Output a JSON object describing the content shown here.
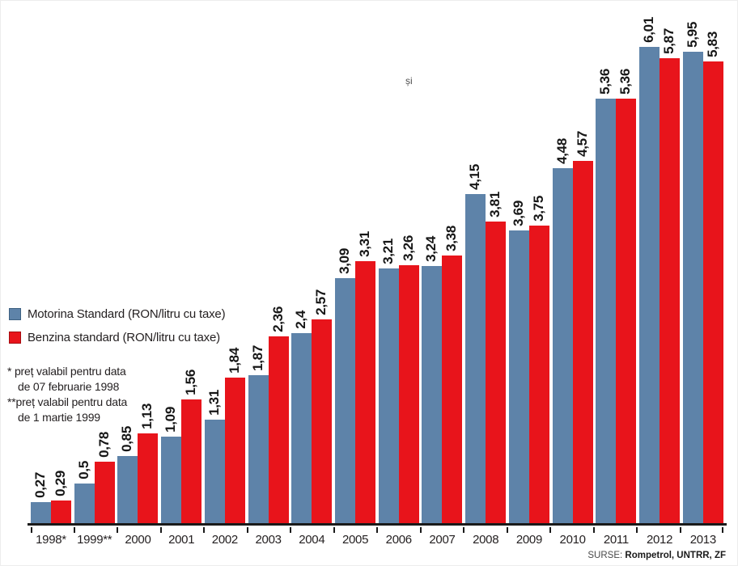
{
  "title_fragment": "și",
  "legend": {
    "motorina_label": "Motorina Standard (RON/litru cu taxe)",
    "benzina_label": "Benzina standard (RON/litru cu taxe)"
  },
  "footnotes": {
    "line1": "* preț valabil pentru data",
    "line2": "de 07 februarie 1998",
    "line3": "**preț valabil pentru data",
    "line4": "de 1 martie 1999"
  },
  "source": {
    "prefix": "SURSE:",
    "names": "Rompetrol, UNTRR, ZF"
  },
  "colors": {
    "motorina": "#5e83a9",
    "benzina": "#e8141b",
    "axis": "#1a1a1a",
    "label_text": "#161616"
  },
  "chart_data": {
    "type": "bar",
    "categories": [
      "1998*",
      "1999**",
      "2000",
      "2001",
      "2002",
      "2003",
      "2004",
      "2005",
      "2006",
      "2007",
      "2008",
      "2009",
      "2010",
      "2011",
      "2012",
      "2013"
    ],
    "series": [
      {
        "name": "Motorina Standard (RON/litru cu taxe)",
        "color": "#5e83a9",
        "values": [
          0.27,
          0.5,
          0.85,
          1.09,
          1.31,
          1.87,
          2.4,
          3.09,
          3.21,
          3.24,
          4.15,
          3.69,
          4.48,
          5.36,
          6.01,
          5.95
        ],
        "labels": [
          "0,27",
          "0,5",
          "0,85",
          "1,09",
          "1,31",
          "1,87",
          "2,4",
          "3,09",
          "3,21",
          "3,24",
          "4,15",
          "3,69",
          "4,48",
          "5,36",
          "6,01",
          "5,95"
        ]
      },
      {
        "name": "Benzina standard (RON/litru cu taxe)",
        "color": "#e8141b",
        "values": [
          0.29,
          0.78,
          1.13,
          1.56,
          1.84,
          2.36,
          2.57,
          3.31,
          3.26,
          3.38,
          3.81,
          3.75,
          4.57,
          5.36,
          5.87,
          5.83
        ],
        "labels": [
          "0,29",
          "0,78",
          "1,13",
          "1,56",
          "1,84",
          "2,36",
          "2,57",
          "3,31",
          "3,26",
          "3,38",
          "3,81",
          "3,75",
          "4,57",
          "5,36",
          "5,87",
          "5,83"
        ]
      }
    ],
    "ylim": [
      0,
      6.5
    ],
    "grid": false,
    "y_axis_visible": false,
    "legend_position": "middle-left",
    "value_label_rotation": 90,
    "decimal_separator": ","
  }
}
